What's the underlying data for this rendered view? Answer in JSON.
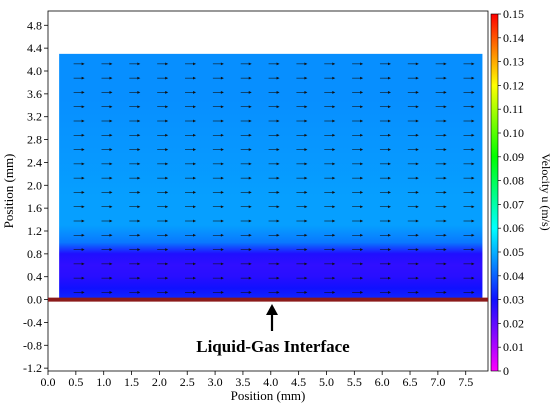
{
  "chart_data": {
    "type": "heatmap",
    "title": "",
    "xlabel": "Position (mm)",
    "ylabel": "Position (mm)",
    "colorbar_label": "Velocity u (m/s)",
    "xlim": [
      0.0,
      7.9
    ],
    "ylim": [
      -1.25,
      5.05
    ],
    "x_ticks": [
      "0.0",
      "0.5",
      "1.0",
      "1.5",
      "2.0",
      "2.5",
      "3.0",
      "3.5",
      "4.0",
      "4.5",
      "5.0",
      "5.5",
      "6.0",
      "6.5",
      "7.0",
      "7.5"
    ],
    "y_ticks": [
      "-1.2",
      "-0.8",
      "-0.4",
      "0.0",
      "0.4",
      "0.8",
      "1.2",
      "1.6",
      "2.0",
      "2.4",
      "2.8",
      "3.2",
      "3.6",
      "4.0",
      "4.4",
      "4.8"
    ],
    "colorbar_ticks": [
      "0",
      "0.01",
      "0.02",
      "0.03",
      "0.04",
      "0.05",
      "0.06",
      "0.07",
      "0.08",
      "0.09",
      "0.10",
      "0.11",
      "0.12",
      "0.13",
      "0.14",
      "0.15"
    ],
    "colorbar_range": [
      0,
      0.15
    ],
    "colorbar_colors": [
      "#ff00ff",
      "#1010ff",
      "#00ffff",
      "#00ff00",
      "#ffff00",
      "#ff0000"
    ],
    "field_extent": {
      "x": [
        0.2,
        7.8
      ],
      "y": [
        0.0,
        4.3
      ]
    },
    "velocity_profile": [
      {
        "y": 0.0,
        "u": 0.033
      },
      {
        "y": 0.2,
        "u": 0.03
      },
      {
        "y": 0.4,
        "u": 0.027
      },
      {
        "y": 0.6,
        "u": 0.026
      },
      {
        "y": 0.8,
        "u": 0.028
      },
      {
        "y": 1.0,
        "u": 0.043
      },
      {
        "y": 1.3,
        "u": 0.048
      },
      {
        "y": 1.8,
        "u": 0.048
      },
      {
        "y": 2.6,
        "u": 0.047
      },
      {
        "y": 3.5,
        "u": 0.046
      },
      {
        "y": 4.3,
        "u": 0.046
      }
    ],
    "vector_grid": {
      "x_spacing": 0.5,
      "y_spacing": 0.25,
      "direction": "positive x"
    },
    "interface": {
      "y": 0.0,
      "color": "#8b1a1a"
    },
    "annotation": "Liquid-Gas Interface"
  }
}
